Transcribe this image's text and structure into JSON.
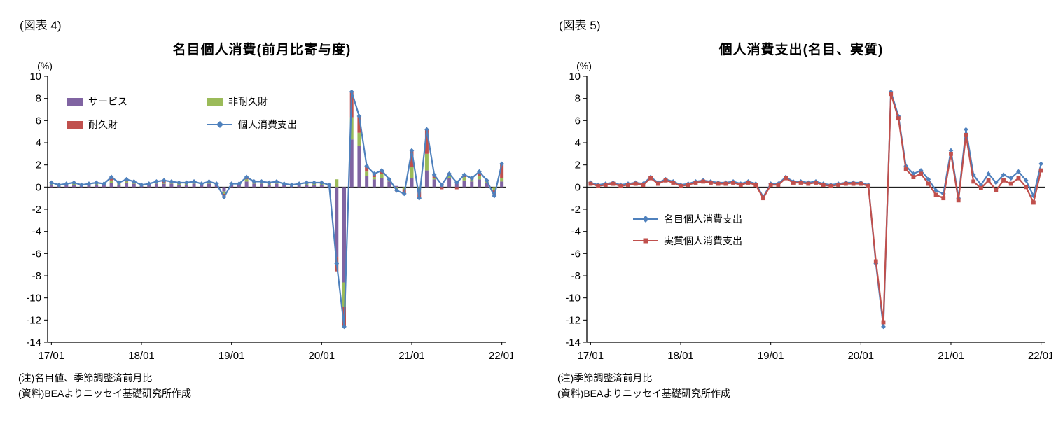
{
  "fig4": {
    "fig_label": "(図表 4)",
    "notes": {
      "note1": "(注)名目値、季節調整済前月比",
      "note2": "(資料)BEAよりニッセイ基礎研究所作成"
    },
    "legend": [
      {
        "label": "サービス",
        "color": "#8064A2",
        "type": "bar"
      },
      {
        "label": "非耐久財",
        "color": "#9BBB59",
        "type": "bar"
      },
      {
        "label": "耐久財",
        "color": "#C0504D",
        "type": "bar"
      },
      {
        "label": "個人消費支出",
        "color": "#4F81BD",
        "type": "line",
        "marker": "diamond"
      }
    ]
  },
  "fig5": {
    "fig_label": "(図表 5)",
    "notes": {
      "note1": "(注)季節調整済前月比",
      "note2": "(資料)BEAよりニッセイ基礎研究所作成"
    },
    "legend": [
      {
        "label": "名目個人消費支出",
        "color": "#4F81BD",
        "type": "line",
        "marker": "diamond"
      },
      {
        "label": "実質個人消費支出",
        "color": "#C0504D",
        "type": "line",
        "marker": "square"
      }
    ]
  },
  "chart_data": [
    {
      "id": "fig4",
      "type": "bar",
      "subtype": "stacked-bars-with-line",
      "title": "名目個人消費(前月比寄与度)",
      "ylabel": "(%)",
      "ylim": [
        -14,
        10
      ],
      "ytick_step": 2,
      "grid": "zero-line-only",
      "legend_position": "inside-top-left",
      "n_points": 61,
      "x_start": "17/01",
      "x_end": "22/01",
      "x_labels": [
        "17/01",
        "18/01",
        "19/01",
        "20/01",
        "21/01",
        "22/01"
      ],
      "x_label_indices": [
        0,
        12,
        24,
        36,
        48,
        60
      ],
      "bar_series": [
        {
          "name": "サービス",
          "color": "#8064A2",
          "values": [
            0.2,
            0.1,
            0.2,
            0.2,
            0.1,
            0.2,
            0.2,
            0.2,
            0.4,
            0.2,
            0.4,
            0.3,
            0.1,
            0.2,
            0.3,
            0.3,
            0.3,
            0.2,
            0.2,
            0.3,
            0.2,
            0.3,
            0.2,
            -0.4,
            0.2,
            0.2,
            0.5,
            0.3,
            0.3,
            0.2,
            0.3,
            0.2,
            0.1,
            0.2,
            0.2,
            0.2,
            0.2,
            0.1,
            -6.3,
            -8.6,
            4.3,
            3.7,
            1.0,
            0.7,
            0.8,
            0.5,
            0.1,
            0.0,
            0.8,
            0.0,
            1.5,
            0.7,
            0.4,
            0.8,
            0.5,
            0.6,
            0.5,
            0.7,
            0.4,
            0.0,
            0.5
          ]
        },
        {
          "name": "非耐久財",
          "color": "#9BBB59",
          "values": [
            0.1,
            0.1,
            0.1,
            0.1,
            0.0,
            0.1,
            0.1,
            0.1,
            0.2,
            0.1,
            0.1,
            0.1,
            0.1,
            0.1,
            0.1,
            0.1,
            0.1,
            0.1,
            0.1,
            0.1,
            0.0,
            0.1,
            0.1,
            -0.2,
            0.1,
            0.0,
            0.2,
            0.1,
            0.1,
            0.1,
            0.1,
            0.1,
            0.1,
            0.1,
            0.1,
            0.1,
            0.1,
            0.1,
            0.7,
            -2.2,
            2.0,
            1.2,
            0.4,
            0.2,
            0.4,
            0.1,
            -0.2,
            -0.2,
            1.0,
            -0.4,
            1.5,
            0.1,
            0.0,
            0.2,
            0.1,
            0.3,
            0.2,
            0.3,
            0.1,
            -0.3,
            0.3
          ]
        },
        {
          "name": "耐久財",
          "color": "#C0504D",
          "values": [
            0.1,
            0.0,
            0.0,
            0.1,
            0.1,
            0.0,
            0.1,
            0.0,
            0.3,
            0.1,
            0.2,
            0.1,
            0.0,
            0.0,
            0.1,
            0.2,
            0.1,
            0.1,
            0.1,
            0.1,
            0.1,
            0.1,
            0.0,
            -0.3,
            0.0,
            0.1,
            0.2,
            0.1,
            0.1,
            0.1,
            0.1,
            0.0,
            0.0,
            0.0,
            0.1,
            0.1,
            0.1,
            0.0,
            -1.3,
            -1.8,
            2.3,
            1.5,
            0.5,
            0.3,
            0.3,
            0.1,
            -0.2,
            -0.4,
            1.5,
            -0.6,
            2.2,
            0.3,
            -0.2,
            0.2,
            -0.2,
            0.2,
            0.1,
            0.4,
            0.1,
            -0.5,
            1.3
          ]
        }
      ],
      "line_series": [
        {
          "name": "個人消費支出",
          "color": "#4F81BD",
          "marker": "diamond",
          "values": [
            0.4,
            0.2,
            0.3,
            0.4,
            0.2,
            0.3,
            0.4,
            0.3,
            0.9,
            0.4,
            0.7,
            0.5,
            0.2,
            0.3,
            0.5,
            0.6,
            0.5,
            0.4,
            0.4,
            0.5,
            0.3,
            0.5,
            0.3,
            -0.9,
            0.3,
            0.3,
            0.9,
            0.5,
            0.5,
            0.4,
            0.5,
            0.3,
            0.2,
            0.3,
            0.4,
            0.4,
            0.4,
            0.2,
            -6.9,
            -12.6,
            8.6,
            6.4,
            1.9,
            1.2,
            1.5,
            0.7,
            -0.3,
            -0.6,
            3.3,
            -1.0,
            5.2,
            1.1,
            0.2,
            1.2,
            0.4,
            1.1,
            0.8,
            1.4,
            0.6,
            -0.8,
            2.1
          ]
        }
      ]
    },
    {
      "id": "fig5",
      "type": "line",
      "title": "個人消費支出(名目、実質)",
      "ylabel": "(%)",
      "ylim": [
        -14,
        10
      ],
      "ytick_step": 2,
      "grid": "zero-line-only",
      "legend_position": "inside-middle-left",
      "n_points": 61,
      "x_start": "17/01",
      "x_end": "22/01",
      "x_labels": [
        "17/01",
        "18/01",
        "19/01",
        "20/01",
        "21/01",
        "22/01"
      ],
      "x_label_indices": [
        0,
        12,
        24,
        36,
        48,
        60
      ],
      "line_series": [
        {
          "name": "名目個人消費支出",
          "color": "#4F81BD",
          "marker": "diamond",
          "values": [
            0.4,
            0.2,
            0.3,
            0.4,
            0.2,
            0.3,
            0.4,
            0.3,
            0.9,
            0.4,
            0.7,
            0.5,
            0.2,
            0.3,
            0.5,
            0.6,
            0.5,
            0.4,
            0.4,
            0.5,
            0.3,
            0.5,
            0.3,
            -0.9,
            0.3,
            0.3,
            0.9,
            0.5,
            0.5,
            0.4,
            0.5,
            0.3,
            0.2,
            0.3,
            0.4,
            0.4,
            0.4,
            0.2,
            -6.9,
            -12.6,
            8.6,
            6.4,
            1.9,
            1.2,
            1.5,
            0.7,
            -0.3,
            -0.6,
            3.3,
            -1.0,
            5.2,
            1.1,
            0.2,
            1.2,
            0.4,
            1.1,
            0.8,
            1.4,
            0.6,
            -0.8,
            2.1
          ]
        },
        {
          "name": "実質個人消費支出",
          "color": "#C0504D",
          "marker": "square",
          "values": [
            0.3,
            0.1,
            0.2,
            0.3,
            0.1,
            0.2,
            0.3,
            0.2,
            0.8,
            0.3,
            0.6,
            0.4,
            0.1,
            0.2,
            0.4,
            0.5,
            0.4,
            0.3,
            0.3,
            0.4,
            0.2,
            0.4,
            0.2,
            -1.0,
            0.2,
            0.2,
            0.8,
            0.4,
            0.4,
            0.3,
            0.4,
            0.2,
            0.1,
            0.2,
            0.3,
            0.3,
            0.3,
            0.1,
            -6.7,
            -12.2,
            8.4,
            6.2,
            1.6,
            0.9,
            1.2,
            0.3,
            -0.7,
            -1.0,
            3.0,
            -1.2,
            4.7,
            0.5,
            -0.1,
            0.6,
            -0.3,
            0.6,
            0.3,
            0.8,
            0.0,
            -1.4,
            1.5
          ]
        }
      ]
    }
  ]
}
